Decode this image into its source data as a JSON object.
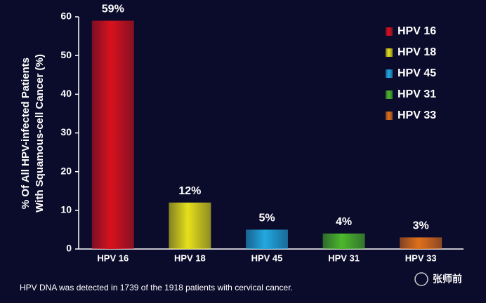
{
  "chart_data": {
    "type": "bar",
    "ylabel": [
      "% Of  All HPV-infected Patients",
      "With Squamous-cell Cancer (%)"
    ],
    "categories": [
      "HPV 16",
      "HPV 18",
      "HPV 45",
      "HPV 31",
      "HPV 33"
    ],
    "values": [
      59,
      12,
      5,
      4,
      3
    ],
    "value_labels": [
      "59%",
      "12%",
      "5%",
      "4%",
      "3%"
    ],
    "colors": [
      "#d8121e",
      "#e6e01c",
      "#22a8e0",
      "#4cb82c",
      "#e0701c"
    ],
    "ylim": [
      0,
      60
    ],
    "yticks": [
      0,
      10,
      20,
      30,
      40,
      50,
      60
    ],
    "legend": "upper right",
    "footnote": "HPV DNA was detected in 1739 of the 1918 patients with cervical cancer.",
    "watermark": "张师前"
  }
}
